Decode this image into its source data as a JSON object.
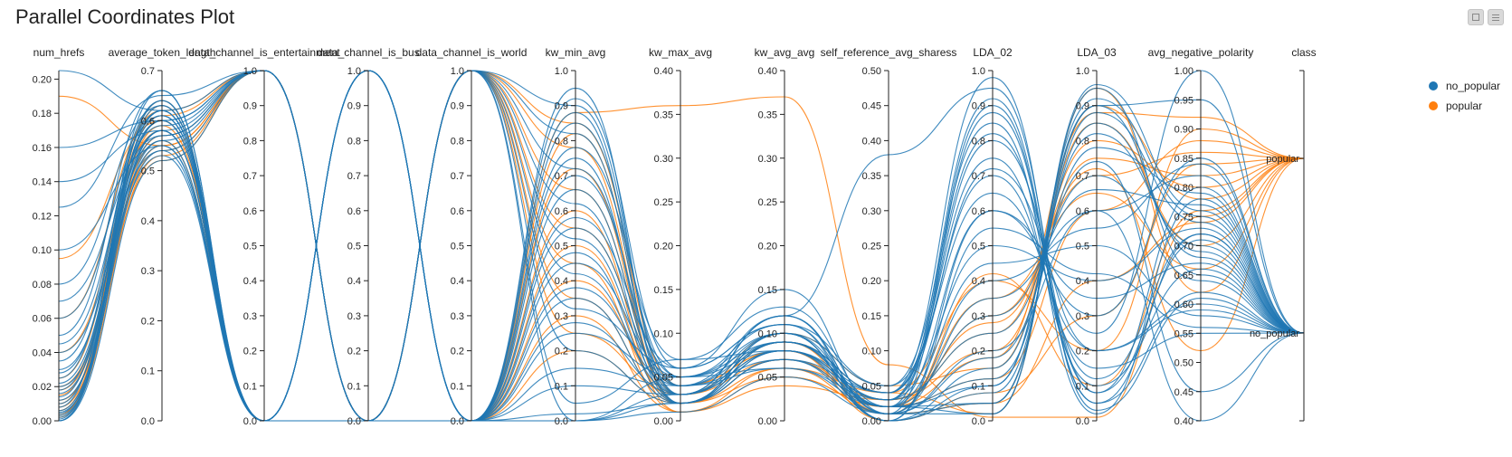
{
  "toolbar": {
    "icons": [
      "collapse-icon",
      "menu-icon"
    ]
  },
  "chart_data": {
    "type": "parallel_coordinates",
    "title": "Parallel Coordinates Plot",
    "colors": {
      "no_popular": "#1f77b4",
      "popular": "#ff7f0e"
    },
    "legend": {
      "placement": "top-right",
      "entries": [
        "no_popular",
        "popular"
      ]
    },
    "axes": [
      {
        "name": "num_hrefs",
        "ticks": [
          "0.00",
          "0.02",
          "0.04",
          "0.06",
          "0.08",
          "0.10",
          "0.12",
          "0.14",
          "0.16",
          "0.18",
          "0.20"
        ],
        "range": [
          0,
          0.205
        ]
      },
      {
        "name": "average_token_length",
        "ticks": [
          "0.0",
          "0.1",
          "0.2",
          "0.3",
          "0.4",
          "0.5",
          "0.6",
          "0.7"
        ],
        "range": [
          0,
          0.7
        ]
      },
      {
        "name": "data_channel_is_entertainment",
        "ticks": [
          "0.0",
          "0.1",
          "0.2",
          "0.3",
          "0.4",
          "0.5",
          "0.6",
          "0.7",
          "0.8",
          "0.9",
          "1.0"
        ],
        "range": [
          0,
          1
        ]
      },
      {
        "name": "data_channel_is_bus",
        "ticks": [
          "0.0",
          "0.1",
          "0.2",
          "0.3",
          "0.4",
          "0.5",
          "0.6",
          "0.7",
          "0.8",
          "0.9",
          "1.0"
        ],
        "range": [
          0,
          1
        ]
      },
      {
        "name": "data_channel_is_world",
        "ticks": [
          "0.0",
          "0.1",
          "0.2",
          "0.3",
          "0.4",
          "0.5",
          "0.6",
          "0.7",
          "0.8",
          "0.9",
          "1.0"
        ],
        "range": [
          0,
          1
        ]
      },
      {
        "name": "kw_min_avg",
        "ticks": [
          "0.0",
          "0.1",
          "0.2",
          "0.3",
          "0.4",
          "0.5",
          "0.6",
          "0.7",
          "0.8",
          "0.9",
          "1.0"
        ],
        "range": [
          0,
          1
        ]
      },
      {
        "name": "kw_max_avg",
        "ticks": [
          "0.00",
          "0.05",
          "0.10",
          "0.15",
          "0.20",
          "0.25",
          "0.30",
          "0.35",
          "0.40"
        ],
        "range": [
          0,
          0.4
        ]
      },
      {
        "name": "kw_avg_avg",
        "ticks": [
          "0.00",
          "0.05",
          "0.10",
          "0.15",
          "0.20",
          "0.25",
          "0.30",
          "0.35",
          "0.40"
        ],
        "range": [
          0,
          0.4
        ]
      },
      {
        "name": "self_reference_avg_sharess",
        "ticks": [
          "0.00",
          "0.05",
          "0.10",
          "0.15",
          "0.20",
          "0.25",
          "0.30",
          "0.35",
          "0.40",
          "0.45",
          "0.50"
        ],
        "range": [
          0,
          0.5
        ]
      },
      {
        "name": "LDA_02",
        "ticks": [
          "0.0",
          "0.1",
          "0.2",
          "0.3",
          "0.4",
          "0.5",
          "0.6",
          "0.7",
          "0.8",
          "0.9",
          "1.0"
        ],
        "range": [
          0,
          1
        ]
      },
      {
        "name": "LDA_03",
        "ticks": [
          "0.0",
          "0.1",
          "0.2",
          "0.3",
          "0.4",
          "0.5",
          "0.6",
          "0.7",
          "0.8",
          "0.9",
          "1.0"
        ],
        "range": [
          0,
          1
        ]
      },
      {
        "name": "avg_negative_polarity",
        "ticks": [
          "0.40",
          "0.45",
          "0.50",
          "0.55",
          "0.60",
          "0.65",
          "0.70",
          "0.75",
          "0.80",
          "0.85",
          "0.90",
          "0.95",
          "1.00"
        ],
        "range": [
          0.4,
          1.0
        ]
      },
      {
        "name": "class",
        "categorical": [
          "no_popular",
          "popular"
        ]
      }
    ],
    "series": [
      {
        "class": "popular",
        "values": [
          0.19,
          0.55,
          1,
          0,
          0,
          0.88,
          0.36,
          0.37,
          0.08,
          0.01,
          0.01,
          0.75
        ]
      },
      {
        "class": "popular",
        "values": [
          0.095,
          0.6,
          0,
          0,
          1,
          0.85,
          0.04,
          0.08,
          0.03,
          0.25,
          0.75,
          0.82
        ]
      },
      {
        "class": "popular",
        "values": [
          0.06,
          0.62,
          1,
          0,
          0,
          0.82,
          0.03,
          0.07,
          0.02,
          0.3,
          0.7,
          0.86
        ]
      },
      {
        "class": "popular",
        "values": [
          0.04,
          0.58,
          0,
          0,
          1,
          0.78,
          0.02,
          0.06,
          0.04,
          0.4,
          0.2,
          0.9
        ]
      },
      {
        "class": "popular",
        "values": [
          0.025,
          0.61,
          1,
          0,
          0,
          0.72,
          0.02,
          0.09,
          0.01,
          0.05,
          0.9,
          0.78
        ]
      },
      {
        "class": "popular",
        "values": [
          0.02,
          0.56,
          0,
          0,
          1,
          0.66,
          0.03,
          0.1,
          0.05,
          0.15,
          0.85,
          0.7
        ]
      },
      {
        "class": "popular",
        "values": [
          0.018,
          0.54,
          1,
          0,
          0,
          0.6,
          0.01,
          0.05,
          0.02,
          0.35,
          0.65,
          0.66
        ]
      },
      {
        "class": "popular",
        "values": [
          0.015,
          0.59,
          0,
          0,
          1,
          0.55,
          0.04,
          0.08,
          0.0,
          0.08,
          0.3,
          0.84
        ]
      },
      {
        "class": "popular",
        "values": [
          0.012,
          0.52,
          1,
          0,
          0,
          0.5,
          0.02,
          0.07,
          0.03,
          0.2,
          0.8,
          0.8
        ]
      },
      {
        "class": "popular",
        "values": [
          0.01,
          0.63,
          0,
          0,
          1,
          0.45,
          0.01,
          0.06,
          0.01,
          0.42,
          0.1,
          0.76
        ]
      },
      {
        "class": "popular",
        "values": [
          0.008,
          0.57,
          1,
          0,
          0,
          0.4,
          0.03,
          0.09,
          0.04,
          0.02,
          0.95,
          0.62
        ]
      },
      {
        "class": "popular",
        "values": [
          0.006,
          0.6,
          0,
          0,
          1,
          0.35,
          0.02,
          0.05,
          0.02,
          0.12,
          0.6,
          0.88
        ]
      },
      {
        "class": "popular",
        "values": [
          0.004,
          0.55,
          1,
          0,
          0,
          0.3,
          0.01,
          0.04,
          0.03,
          0.28,
          0.72,
          0.52
        ]
      },
      {
        "class": "popular",
        "values": [
          0.003,
          0.64,
          0,
          0,
          1,
          0.25,
          0.03,
          0.08,
          0.01,
          0.05,
          0.4,
          0.74
        ]
      },
      {
        "class": "popular",
        "values": [
          0.002,
          0.53,
          1,
          0,
          0,
          0.2,
          0.02,
          0.07,
          0.02,
          0.18,
          0.88,
          0.92
        ]
      },
      {
        "class": "no_popular",
        "values": [
          0.205,
          0.62,
          1,
          0,
          0,
          0.95,
          0.03,
          0.1,
          0.02,
          0.9,
          0.05,
          0.72
        ]
      },
      {
        "class": "no_popular",
        "values": [
          0.16,
          0.6,
          0,
          1,
          0,
          0.92,
          0.06,
          0.15,
          0.01,
          0.05,
          0.9,
          0.68
        ]
      },
      {
        "class": "no_popular",
        "values": [
          0.14,
          0.58,
          0,
          0,
          1,
          0.9,
          0.04,
          0.12,
          0.38,
          0.95,
          0.08,
          0.8
        ]
      },
      {
        "class": "no_popular",
        "values": [
          0.125,
          0.65,
          1,
          0,
          0,
          0.88,
          0.02,
          0.09,
          0.03,
          0.8,
          0.2,
          0.6
        ]
      },
      {
        "class": "no_popular",
        "values": [
          0.1,
          0.55,
          0,
          1,
          0,
          0.85,
          0.05,
          0.11,
          0.0,
          0.1,
          0.92,
          0.75
        ]
      },
      {
        "class": "no_popular",
        "values": [
          0.08,
          0.63,
          0,
          0,
          1,
          0.82,
          0.03,
          0.08,
          0.04,
          0.7,
          0.15,
          0.55
        ]
      },
      {
        "class": "no_popular",
        "values": [
          0.07,
          0.57,
          1,
          0,
          0,
          0.78,
          0.07,
          0.13,
          0.02,
          0.6,
          0.3,
          0.85
        ]
      },
      {
        "class": "no_popular",
        "values": [
          0.06,
          0.61,
          0,
          1,
          0,
          0.75,
          0.02,
          0.07,
          0.01,
          0.02,
          0.95,
          0.65
        ]
      },
      {
        "class": "no_popular",
        "values": [
          0.05,
          0.66,
          0,
          0,
          1,
          0.72,
          0.04,
          0.1,
          0.05,
          0.85,
          0.02,
          0.78
        ]
      },
      {
        "class": "no_popular",
        "values": [
          0.045,
          0.59,
          1,
          0,
          0,
          0.7,
          0.05,
          0.09,
          0.02,
          0.45,
          0.5,
          0.58
        ]
      },
      {
        "class": "no_popular",
        "values": [
          0.04,
          0.54,
          0,
          1,
          0,
          0.66,
          0.03,
          0.12,
          0.0,
          0.15,
          0.82,
          0.7
        ]
      },
      {
        "class": "no_popular",
        "values": [
          0.035,
          0.62,
          0,
          0,
          1,
          0.62,
          0.02,
          0.08,
          0.03,
          0.92,
          0.05,
          0.62
        ]
      },
      {
        "class": "no_popular",
        "values": [
          0.03,
          0.56,
          1,
          0,
          0,
          0.58,
          0.06,
          0.11,
          0.01,
          0.35,
          0.6,
          0.82
        ]
      },
      {
        "class": "no_popular",
        "values": [
          0.028,
          0.6,
          0,
          1,
          0,
          0.55,
          0.04,
          0.07,
          0.02,
          0.05,
          0.88,
          0.74
        ]
      },
      {
        "class": "no_popular",
        "values": [
          0.025,
          0.64,
          0,
          0,
          1,
          0.52,
          0.03,
          0.09,
          0.04,
          0.75,
          0.1,
          0.66
        ]
      },
      {
        "class": "no_popular",
        "values": [
          0.022,
          0.58,
          1,
          0,
          0,
          0.48,
          0.02,
          0.1,
          0.0,
          0.55,
          0.42,
          0.56
        ]
      },
      {
        "class": "no_popular",
        "values": [
          0.02,
          0.53,
          0,
          1,
          0,
          0.45,
          0.05,
          0.08,
          0.02,
          0.12,
          0.78,
          0.79
        ]
      },
      {
        "class": "no_popular",
        "values": [
          0.018,
          0.61,
          0,
          0,
          1,
          0.42,
          0.03,
          0.12,
          0.01,
          0.88,
          0.08,
          0.71
        ]
      },
      {
        "class": "no_popular",
        "values": [
          0.016,
          0.57,
          1,
          0,
          0,
          0.38,
          0.04,
          0.06,
          0.03,
          0.25,
          0.7,
          0.64
        ]
      },
      {
        "class": "no_popular",
        "values": [
          0.014,
          0.63,
          0,
          1,
          0,
          0.35,
          0.02,
          0.09,
          0.02,
          0.02,
          0.96,
          0.76
        ]
      },
      {
        "class": "no_popular",
        "values": [
          0.012,
          0.55,
          0,
          0,
          1,
          0.32,
          0.06,
          0.11,
          0.05,
          0.65,
          0.2,
          0.59
        ]
      },
      {
        "class": "no_popular",
        "values": [
          0.01,
          0.6,
          1,
          0,
          0,
          0.28,
          0.03,
          0.08,
          0.01,
          0.4,
          0.55,
          0.84
        ]
      },
      {
        "class": "no_popular",
        "values": [
          0.008,
          0.66,
          0,
          1,
          0,
          0.25,
          0.05,
          0.1,
          0.0,
          0.08,
          0.85,
          0.69
        ]
      },
      {
        "class": "no_popular",
        "values": [
          0.006,
          0.58,
          0,
          0,
          1,
          0.2,
          0.02,
          0.07,
          0.04,
          0.98,
          0.03,
          0.61
        ]
      },
      {
        "class": "no_popular",
        "values": [
          0.005,
          0.54,
          1,
          0,
          0,
          0.15,
          0.04,
          0.09,
          0.02,
          0.3,
          0.66,
          0.77
        ]
      },
      {
        "class": "no_popular",
        "values": [
          0.004,
          0.62,
          0,
          1,
          0,
          0.1,
          0.03,
          0.12,
          0.01,
          0.18,
          0.74,
          0.45
        ]
      },
      {
        "class": "no_popular",
        "values": [
          0.003,
          0.56,
          0,
          0,
          1,
          0.05,
          0.07,
          0.08,
          0.03,
          0.5,
          0.4,
          0.73
        ]
      },
      {
        "class": "no_popular",
        "values": [
          0.002,
          0.6,
          1,
          0,
          0,
          0.02,
          0.02,
          0.1,
          0.0,
          0.6,
          0.35,
          0.67
        ]
      },
      {
        "class": "no_popular",
        "values": [
          0.001,
          0.64,
          0,
          1,
          0,
          0.0,
          0.05,
          0.06,
          0.02,
          0.1,
          0.9,
          0.95
        ]
      },
      {
        "class": "no_popular",
        "values": [
          0.0,
          0.58,
          0,
          0,
          1,
          0.0,
          0.03,
          0.09,
          0.04,
          0.82,
          0.12,
          0.72
        ]
      },
      {
        "class": "no_popular",
        "values": [
          0.0,
          0.52,
          1,
          0,
          0,
          0.0,
          0.01,
          0.05,
          0.01,
          0.2,
          0.6,
          0.4
        ]
      },
      {
        "class": "no_popular",
        "values": [
          0.0,
          0.62,
          0,
          1,
          0,
          0.0,
          0.02,
          0.08,
          0.03,
          0.72,
          0.25,
          1.0
        ]
      }
    ]
  }
}
